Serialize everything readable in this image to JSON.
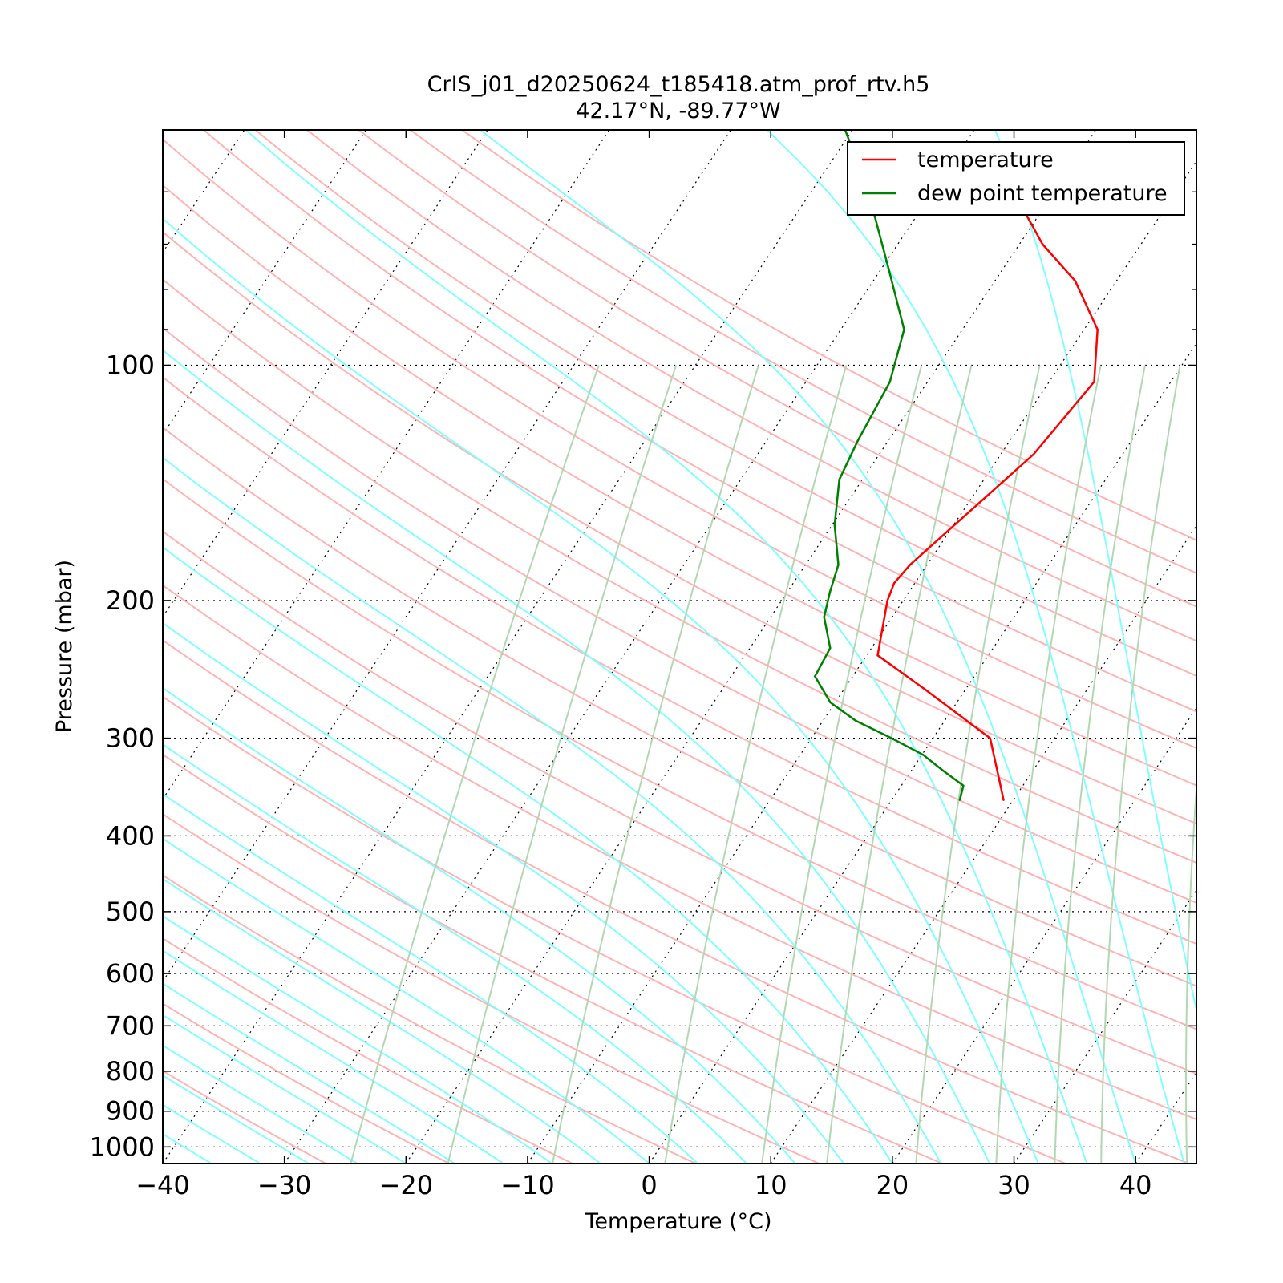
{
  "chart_data": {
    "type": "line",
    "title_line1": "CrIS_j01_d20250624_t185418.atm_prof_rtv.h5",
    "title_line2": "42.17°N, -89.77°W",
    "xlabel": "Temperature (°C)",
    "ylabel": "Pressure (mbar)",
    "xlim": [
      -40,
      45
    ],
    "ylim": [
      1050,
      50
    ],
    "y_scale": "log",
    "skew": true,
    "grid": true,
    "legend_position": "top-right",
    "x_ticks": [
      -40,
      -30,
      -20,
      -10,
      0,
      10,
      20,
      30,
      40
    ],
    "x_tick_labels": [
      "−40",
      "−30",
      "−20",
      "−10",
      "0",
      "10",
      "20",
      "30",
      "40"
    ],
    "y_ticks": [
      100,
      200,
      300,
      400,
      500,
      600,
      700,
      800,
      900,
      1000
    ],
    "y_tick_labels": [
      "100",
      "200",
      "300",
      "400",
      "500",
      "600",
      "700",
      "800",
      "900",
      "1000"
    ],
    "series": [
      {
        "name": "temperature",
        "color": "#ff0000",
        "pressure": [
          360,
          340,
          300,
          260,
          235,
          200,
          190,
          180,
          130,
          105,
          90,
          78,
          70,
          58,
          52
        ],
        "values": [
          9.2,
          7.8,
          4.7,
          -3.3,
          -9.1,
          -11.3,
          -11.7,
          -11.4,
          -7.3,
          -6.3,
          -8.9,
          -13.4,
          -18.1,
          -24.5,
          -30.8
        ]
      },
      {
        "name": "dew point temperature",
        "color": "#008000",
        "pressure": [
          360,
          345,
          330,
          315,
          300,
          285,
          270,
          250,
          230,
          210,
          195,
          180,
          160,
          140,
          125,
          105,
          90,
          75,
          60,
          50
        ],
        "values": [
          5.6,
          5.1,
          2.6,
          0.1,
          -3.4,
          -7.3,
          -10.4,
          -13.1,
          -13.4,
          -15.6,
          -16.5,
          -17.3,
          -19.8,
          -21.9,
          -22.5,
          -23.1,
          -24.8,
          -29.5,
          -35.3,
          -40.6
        ]
      }
    ],
    "background_lines": {
      "isotherm_color": "#000000",
      "dry_adiabat_color": "#ffb3b3",
      "moist_adiabat_color": "#80ffff",
      "mixing_ratio_color": "#b2d8b2"
    }
  }
}
